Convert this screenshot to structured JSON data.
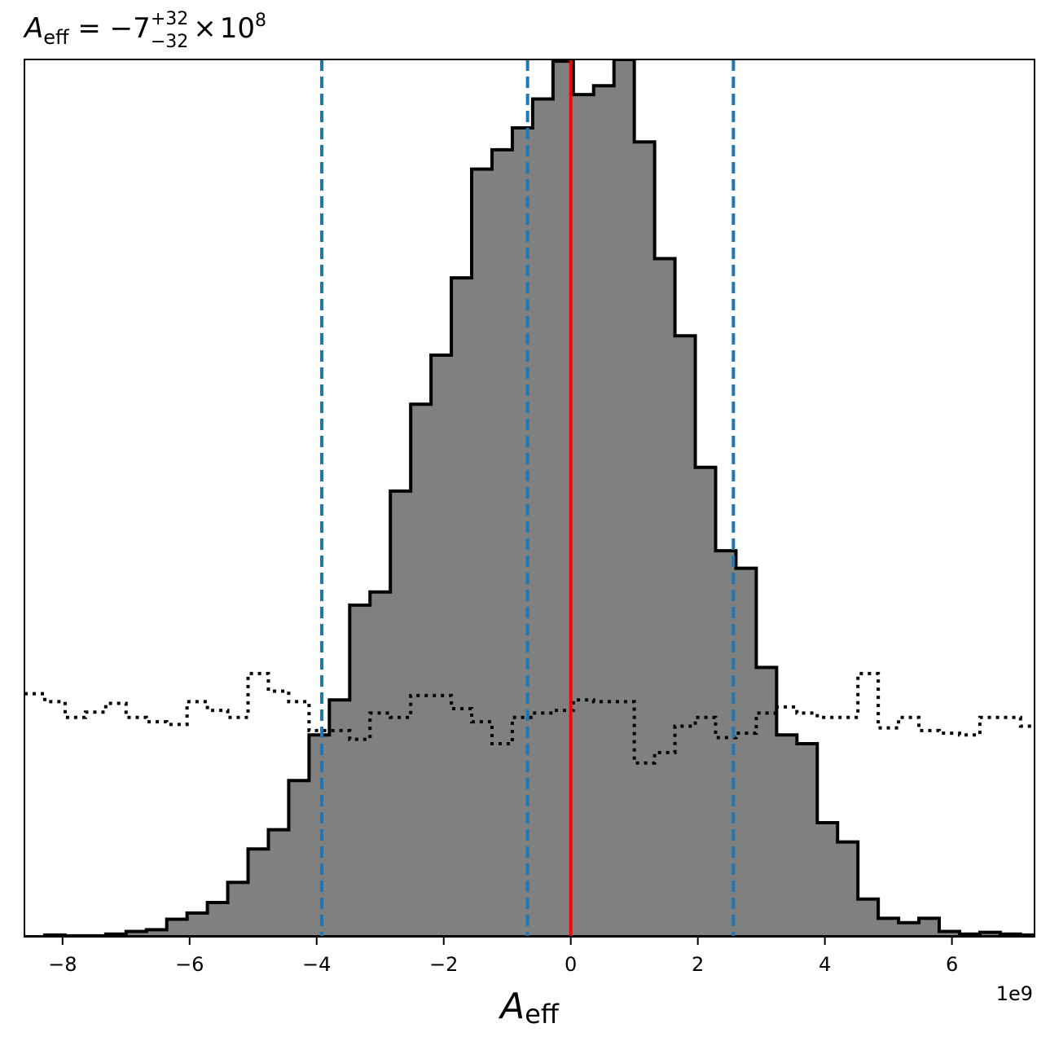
{
  "chart_data": {
    "type": "histogram",
    "title": {
      "symbol": "A",
      "subscript": "eff",
      "equals": " = −7",
      "sup": "+32",
      "sub": "−32",
      "times": "×",
      "base": "10",
      "exponent": "8"
    },
    "xlabel": {
      "symbol": "A",
      "subscript": "eff"
    },
    "x_offset_label": "1e9",
    "xlim": [
      -8.6,
      7.3
    ],
    "ylim": [
      0,
      1.0
    ],
    "x_scale": 1000000000.0,
    "xticks": [
      -8,
      -6,
      -4,
      -2,
      0,
      2,
      4,
      6
    ],
    "xtick_labels": [
      "−8",
      "−6",
      "−4",
      "−2",
      "0",
      "2",
      "4",
      "6"
    ],
    "yticks_visible": false,
    "grid": false,
    "posterior": {
      "style": "filled-step",
      "fill_color": "#808080",
      "edge_color": "#000000",
      "bin_edges": [
        -8.6,
        -8.28,
        -7.96,
        -7.64,
        -7.32,
        -7.0,
        -6.68,
        -6.36,
        -6.04,
        -5.72,
        -5.4,
        -5.08,
        -4.76,
        -4.44,
        -4.12,
        -3.8,
        -3.48,
        -3.16,
        -2.84,
        -2.52,
        -2.2,
        -1.88,
        -1.56,
        -1.24,
        -0.92,
        -0.6,
        -0.28,
        0.04,
        0.36,
        0.68,
        1.0,
        1.32,
        1.64,
        1.96,
        2.28,
        2.6,
        2.92,
        3.24,
        3.56,
        3.88,
        4.2,
        4.52,
        4.84,
        5.16,
        5.48,
        5.8,
        6.12,
        6.44,
        6.76,
        7.08,
        7.4
      ],
      "heights": [
        0.0,
        0.002,
        0.001,
        0.001,
        0.003,
        0.006,
        0.008,
        0.02,
        0.027,
        0.039,
        0.062,
        0.1,
        0.122,
        0.178,
        0.23,
        0.27,
        0.378,
        0.393,
        0.508,
        0.607,
        0.663,
        0.751,
        0.875,
        0.897,
        0.922,
        0.955,
        0.998,
        0.96,
        0.97,
        1.0,
        0.906,
        0.773,
        0.685,
        0.535,
        0.44,
        0.42,
        0.307,
        0.23,
        0.22,
        0.13,
        0.108,
        0.043,
        0.021,
        0.016,
        0.021,
        0.006,
        0.003,
        0.005,
        0.003,
        0.002
      ]
    },
    "prior": {
      "style": "dotted-step",
      "edge_color": "#000000",
      "bin_edges": [
        -8.6,
        -8.28,
        -7.96,
        -7.64,
        -7.32,
        -7.0,
        -6.68,
        -6.36,
        -6.04,
        -5.72,
        -5.4,
        -5.08,
        -4.76,
        -4.44,
        -4.12,
        -3.8,
        -3.48,
        -3.16,
        -2.84,
        -2.52,
        -2.2,
        -1.88,
        -1.56,
        -1.24,
        -0.92,
        -0.6,
        -0.28,
        0.04,
        0.36,
        0.68,
        1.0,
        1.32,
        1.64,
        1.96,
        2.28,
        2.6,
        2.92,
        3.24,
        3.56,
        3.88,
        4.2,
        4.52,
        4.84,
        5.16,
        5.48,
        5.8,
        6.12,
        6.44,
        6.76,
        7.08,
        7.4
      ],
      "heights": [
        0.277,
        0.268,
        0.25,
        0.256,
        0.266,
        0.25,
        0.245,
        0.242,
        0.268,
        0.258,
        0.25,
        0.3,
        0.28,
        0.268,
        0.235,
        0.235,
        0.225,
        0.255,
        0.25,
        0.275,
        0.275,
        0.26,
        0.245,
        0.22,
        0.25,
        0.255,
        0.258,
        0.27,
        0.268,
        0.268,
        0.198,
        0.21,
        0.24,
        0.25,
        0.227,
        0.232,
        0.255,
        0.262,
        0.255,
        0.25,
        0.25,
        0.3,
        0.238,
        0.25,
        0.235,
        0.232,
        0.23,
        0.25,
        0.25,
        0.24
      ]
    },
    "vlines": [
      {
        "x": -3.92,
        "style": "dashed",
        "color": "#1f77b4"
      },
      {
        "x": -0.68,
        "style": "dashed",
        "color": "#1f77b4"
      },
      {
        "x": 2.56,
        "style": "dashed",
        "color": "#1f77b4"
      },
      {
        "x": 0.0,
        "style": "solid",
        "color": "#ff0000"
      }
    ]
  }
}
